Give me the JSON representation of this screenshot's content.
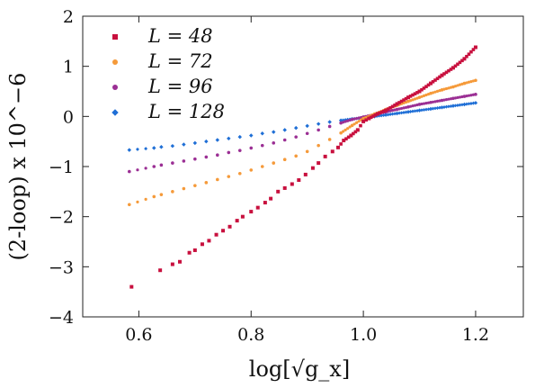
{
  "chart_data": {
    "type": "scatter",
    "xlabel": "log[√g_x]",
    "ylabel": "(2-loop) x 10^−6",
    "xlim": [
      0.5,
      1.285
    ],
    "ylim": [
      -4,
      2
    ],
    "xticks": [
      0.6,
      0.8,
      1.0,
      1.2
    ],
    "xtick_labels": [
      "0.6",
      "0.8",
      "1.0",
      "1.2"
    ],
    "yticks": [
      -4,
      -3,
      -2,
      -1,
      0,
      1,
      2
    ],
    "ytick_labels": [
      "−4",
      "−3",
      "−2",
      "−1",
      "0",
      "1",
      "2"
    ],
    "grid": false,
    "legend_position": "top-left",
    "series": [
      {
        "name": "L = 48",
        "color": "#c8103e",
        "marker": "square",
        "points": [
          [
            0.587,
            -3.4
          ],
          [
            0.638,
            -3.07
          ],
          [
            0.66,
            -2.95
          ],
          [
            0.673,
            -2.9
          ],
          [
            0.69,
            -2.72
          ],
          [
            0.7,
            -2.67
          ],
          [
            0.713,
            -2.55
          ],
          [
            0.725,
            -2.48
          ],
          [
            0.738,
            -2.36
          ],
          [
            0.75,
            -2.28
          ],
          [
            0.762,
            -2.2
          ],
          [
            0.775,
            -2.08
          ],
          [
            0.785,
            -2.0
          ],
          [
            0.8,
            -1.9
          ],
          [
            0.812,
            -1.82
          ],
          [
            0.825,
            -1.72
          ],
          [
            0.835,
            -1.64
          ],
          [
            0.848,
            -1.5
          ],
          [
            0.86,
            -1.43
          ],
          [
            0.873,
            -1.35
          ],
          [
            0.885,
            -1.27
          ],
          [
            0.897,
            -1.16
          ],
          [
            0.91,
            -1.03
          ],
          [
            0.92,
            -0.93
          ],
          [
            0.932,
            -0.8
          ],
          [
            0.945,
            -0.7
          ],
          [
            0.955,
            -0.62
          ],
          [
            0.965,
            -0.48
          ],
          [
            0.978,
            -0.38
          ],
          [
            0.99,
            -0.27
          ],
          [
            1.0,
            -0.1
          ],
          [
            1.01,
            -0.04
          ],
          [
            1.025,
            0.05
          ],
          [
            1.04,
            0.12
          ],
          [
            1.06,
            0.25
          ],
          [
            1.08,
            0.38
          ],
          [
            1.1,
            0.5
          ],
          [
            1.12,
            0.66
          ],
          [
            1.14,
            0.82
          ],
          [
            1.16,
            0.97
          ],
          [
            1.18,
            1.15
          ],
          [
            1.2,
            1.38
          ]
        ]
      },
      {
        "name": "L = 72",
        "color": "#f59a3a",
        "marker": "circle",
        "points": [
          [
            0.583,
            -1.76
          ],
          [
            0.627,
            -1.6
          ],
          [
            0.64,
            -1.56
          ],
          [
            0.66,
            -1.5
          ],
          [
            0.68,
            -1.44
          ],
          [
            0.7,
            -1.38
          ],
          [
            0.72,
            -1.32
          ],
          [
            0.74,
            -1.26
          ],
          [
            0.76,
            -1.2
          ],
          [
            0.78,
            -1.14
          ],
          [
            0.8,
            -1.07
          ],
          [
            0.82,
            -1.0
          ],
          [
            0.84,
            -0.93
          ],
          [
            0.86,
            -0.86
          ],
          [
            0.88,
            -0.79
          ],
          [
            0.9,
            -0.7
          ],
          [
            0.92,
            -0.58
          ],
          [
            0.94,
            -0.46
          ],
          [
            0.96,
            -0.33
          ],
          [
            0.98,
            -0.18
          ],
          [
            1.0,
            -0.04
          ],
          [
            1.02,
            0.05
          ],
          [
            1.04,
            0.14
          ],
          [
            1.06,
            0.22
          ],
          [
            1.08,
            0.3
          ],
          [
            1.1,
            0.38
          ],
          [
            1.12,
            0.46
          ],
          [
            1.14,
            0.53
          ],
          [
            1.16,
            0.59
          ],
          [
            1.18,
            0.66
          ],
          [
            1.2,
            0.72
          ]
        ]
      },
      {
        "name": "L = 96",
        "color": "#9b2f94",
        "marker": "circle",
        "points": [
          [
            0.583,
            -1.1
          ],
          [
            0.627,
            -1.0
          ],
          [
            0.64,
            -0.97
          ],
          [
            0.66,
            -0.93
          ],
          [
            0.68,
            -0.89
          ],
          [
            0.7,
            -0.85
          ],
          [
            0.72,
            -0.81
          ],
          [
            0.74,
            -0.77
          ],
          [
            0.76,
            -0.72
          ],
          [
            0.78,
            -0.68
          ],
          [
            0.8,
            -0.63
          ],
          [
            0.82,
            -0.58
          ],
          [
            0.84,
            -0.53
          ],
          [
            0.86,
            -0.47
          ],
          [
            0.88,
            -0.41
          ],
          [
            0.9,
            -0.34
          ],
          [
            0.92,
            -0.27
          ],
          [
            0.94,
            -0.2
          ],
          [
            0.96,
            -0.13
          ],
          [
            0.98,
            -0.06
          ],
          [
            1.0,
            -0.01
          ],
          [
            1.02,
            0.04
          ],
          [
            1.04,
            0.09
          ],
          [
            1.06,
            0.14
          ],
          [
            1.08,
            0.19
          ],
          [
            1.1,
            0.24
          ],
          [
            1.12,
            0.28
          ],
          [
            1.14,
            0.32
          ],
          [
            1.16,
            0.36
          ],
          [
            1.18,
            0.4
          ],
          [
            1.2,
            0.44
          ]
        ]
      },
      {
        "name": "L = 128",
        "color": "#1f6fd6",
        "marker": "diamond",
        "points": [
          [
            0.583,
            -0.67
          ],
          [
            0.627,
            -0.63
          ],
          [
            0.64,
            -0.61
          ],
          [
            0.66,
            -0.59
          ],
          [
            0.68,
            -0.56
          ],
          [
            0.7,
            -0.53
          ],
          [
            0.72,
            -0.5
          ],
          [
            0.74,
            -0.47
          ],
          [
            0.76,
            -0.44
          ],
          [
            0.78,
            -0.41
          ],
          [
            0.8,
            -0.38
          ],
          [
            0.82,
            -0.34
          ],
          [
            0.84,
            -0.31
          ],
          [
            0.86,
            -0.27
          ],
          [
            0.88,
            -0.23
          ],
          [
            0.9,
            -0.19
          ],
          [
            0.92,
            -0.15
          ],
          [
            0.94,
            -0.11
          ],
          [
            0.96,
            -0.08
          ],
          [
            0.98,
            -0.05
          ],
          [
            1.0,
            -0.03
          ],
          [
            1.02,
            0.0
          ],
          [
            1.04,
            0.03
          ],
          [
            1.06,
            0.06
          ],
          [
            1.08,
            0.09
          ],
          [
            1.1,
            0.12
          ],
          [
            1.12,
            0.15
          ],
          [
            1.14,
            0.18
          ],
          [
            1.16,
            0.21
          ],
          [
            1.18,
            0.24
          ],
          [
            1.2,
            0.27
          ]
        ]
      }
    ]
  }
}
